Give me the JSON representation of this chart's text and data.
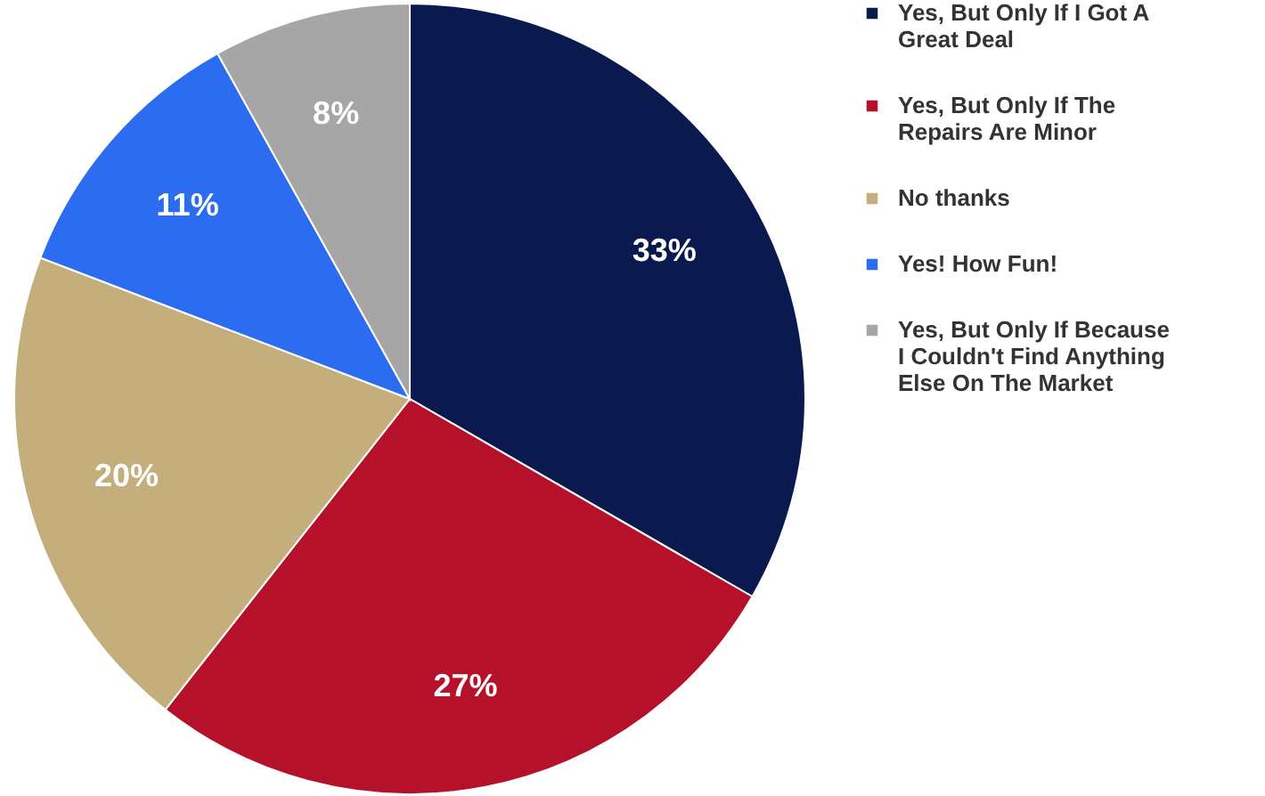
{
  "chart_data": {
    "type": "pie",
    "categories": [
      "Yes, But Only If I Got A Great Deal",
      "Yes, But Only If The Repairs Are Minor",
      "No thanks",
      "Yes! How Fun!",
      "Yes, But Only If Because I Couldn't Find Anything Else On The Market"
    ],
    "values": [
      33,
      27,
      20,
      11,
      8
    ],
    "colors": [
      "#0b1a4e",
      "#b5112b",
      "#c3ae7c",
      "#2c6cf0",
      "#a6a6a6"
    ],
    "value_labels": [
      "33%",
      "27%",
      "20%",
      "11%",
      "8%"
    ],
    "legend": "right"
  }
}
